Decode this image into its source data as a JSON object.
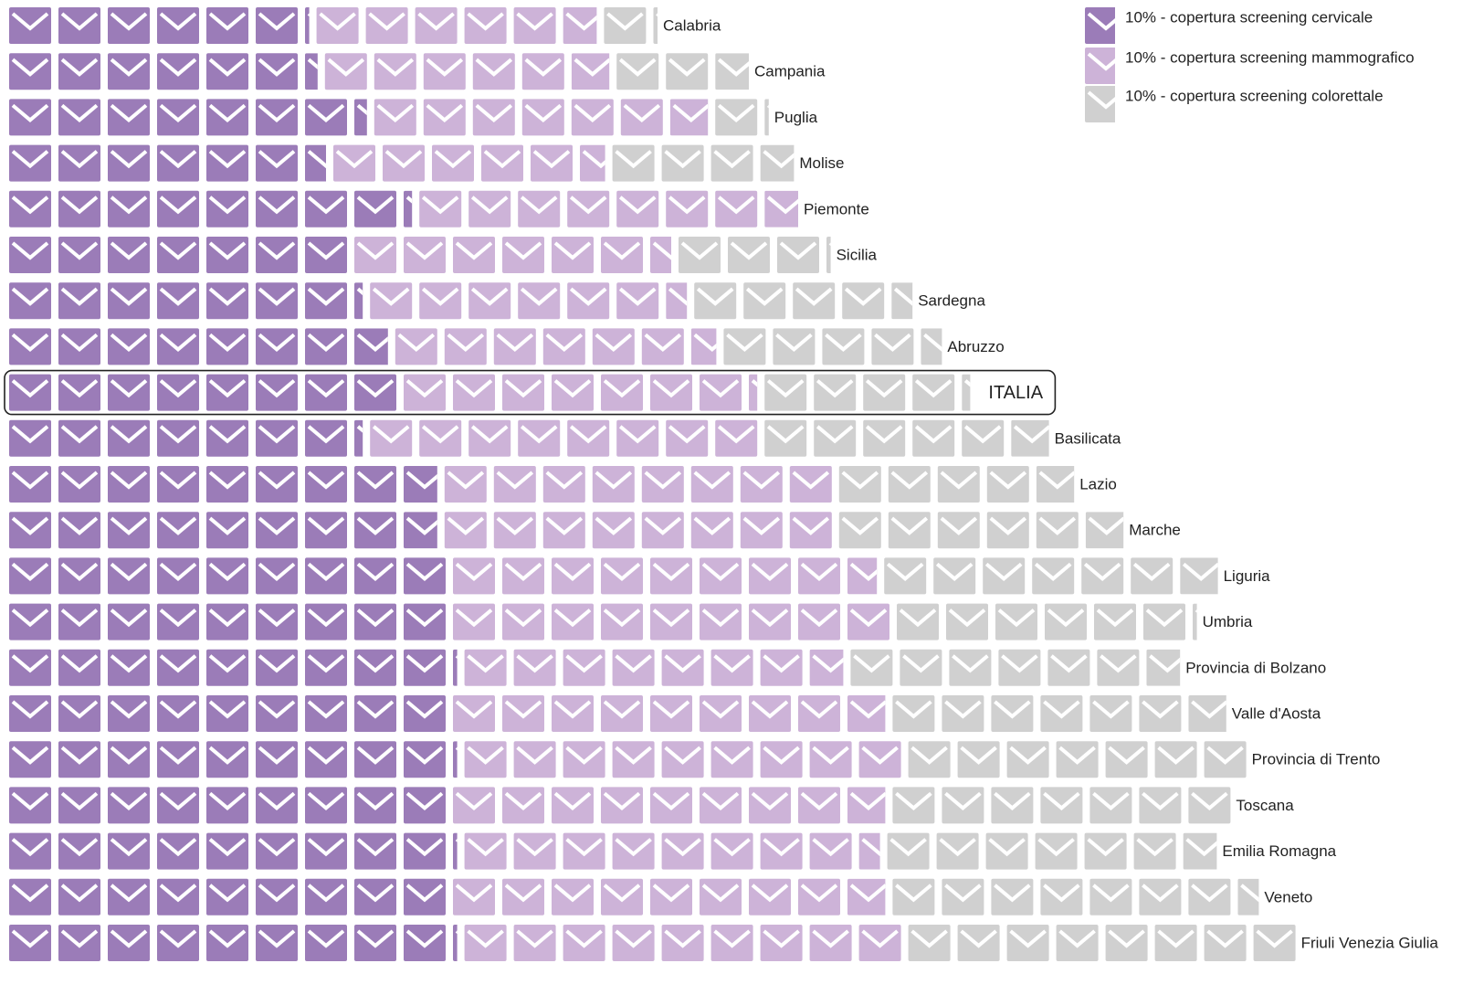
{
  "chart_data": {
    "type": "pictogram",
    "categories": [
      "Calabria",
      "Campania",
      "Puglia",
      "Molise",
      "Piemonte",
      "Sicilia",
      "Sardegna",
      "Abruzzo",
      "ITALIA",
      "Basilicata",
      "Lazio",
      "Marche",
      "Liguria",
      "Umbria",
      "Provincia di Bolzano",
      "Valle d'Aosta",
      "Provincia di Trento",
      "Toscana",
      "Emilia Romagna",
      "Veneto",
      "Friuli Venezia Giulia"
    ],
    "highlight_index": 8,
    "legend": "upper right",
    "series": [
      {
        "name": "10% - copertura screening cervicale",
        "color": "#9b7cb8",
        "values": [
          61,
          63,
          73,
          65,
          82,
          70,
          72,
          78,
          80,
          72,
          88,
          88,
          90,
          90,
          91,
          90,
          91,
          90,
          91,
          90,
          91
        ]
      },
      {
        "name": "10% - copertura screening mammografico",
        "color": "#cdb3d8",
        "values": [
          58,
          59,
          69,
          56,
          78,
          65,
          65,
          66,
          72,
          80,
          80,
          80,
          87,
          90,
          78,
          89,
          90,
          89,
          85,
          89,
          90
        ]
      },
      {
        "name": "10% - copertura screening colorettale",
        "color": "#d0d0d0",
        "values": [
          11,
          28,
          11,
          38,
          0,
          31,
          45,
          45,
          42,
          59,
          49,
          59,
          69,
          61,
          68,
          69,
          70,
          70,
          68,
          75,
          80
        ]
      }
    ]
  }
}
